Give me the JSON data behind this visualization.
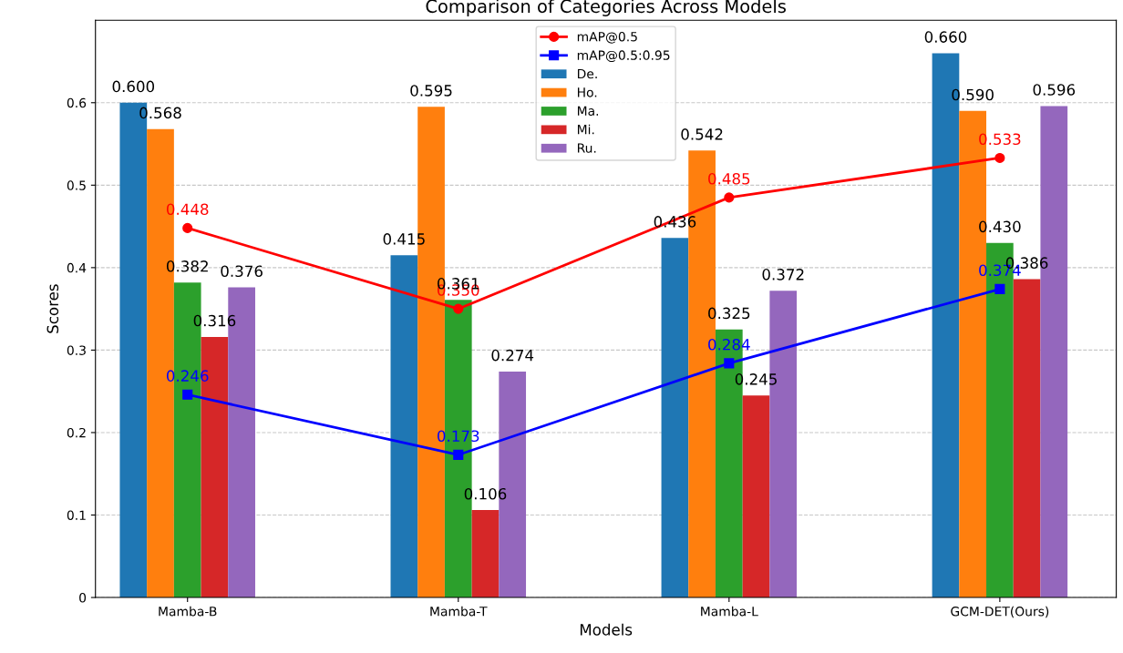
{
  "chart_data": {
    "type": "bar",
    "title": "Comparison of Categories Across Models",
    "xlabel": "Models",
    "ylabel": "Scores",
    "categories": [
      "Mamba-B",
      "Mamba-T",
      "Mamba-L",
      "GCM-DET(Ours)"
    ],
    "series": [
      {
        "name": "mAP@0.5",
        "type": "line",
        "color": "#ff0000",
        "marker": "circle",
        "values": [
          0.448,
          0.35,
          0.485,
          0.533
        ],
        "value_labels": [
          "0.448",
          "0.350",
          "0.485",
          "0.533"
        ]
      },
      {
        "name": "mAP@0.5:0.95",
        "type": "line",
        "color": "#0000ff",
        "marker": "square",
        "values": [
          0.246,
          0.173,
          0.284,
          0.374
        ],
        "value_labels": [
          "0.246",
          "0.173",
          "0.284",
          "0.374"
        ]
      },
      {
        "name": "De.",
        "color": "#1f77b4",
        "values": [
          0.6,
          0.415,
          0.436,
          0.66
        ],
        "value_labels": [
          "0.600",
          "0.415",
          "0.436",
          "0.660"
        ]
      },
      {
        "name": "Ho.",
        "color": "#ff7f0e",
        "values": [
          0.568,
          0.595,
          0.542,
          0.59
        ],
        "value_labels": [
          "0.568",
          "0.595",
          "0.542",
          "0.590"
        ]
      },
      {
        "name": "Ma.",
        "color": "#2ca02c",
        "values": [
          0.382,
          0.361,
          0.325,
          0.43
        ],
        "value_labels": [
          "0.382",
          "0.361",
          "0.325",
          "0.430"
        ]
      },
      {
        "name": "Mi.",
        "color": "#d62728",
        "values": [
          0.316,
          0.106,
          0.245,
          0.386
        ],
        "value_labels": [
          "0.316",
          "0.106",
          "0.245",
          "0.386"
        ]
      },
      {
        "name": "Ru.",
        "color": "#9467bd",
        "values": [
          0.376,
          0.274,
          0.372,
          0.596
        ],
        "value_labels": [
          "0.376",
          "0.274",
          "0.372",
          "0.596"
        ]
      }
    ],
    "ylim": [
      0,
      0.7
    ],
    "yticks": [
      0,
      0.1,
      0.2,
      0.3,
      0.4,
      0.5,
      0.6
    ],
    "grid": "y",
    "legend": "top"
  }
}
